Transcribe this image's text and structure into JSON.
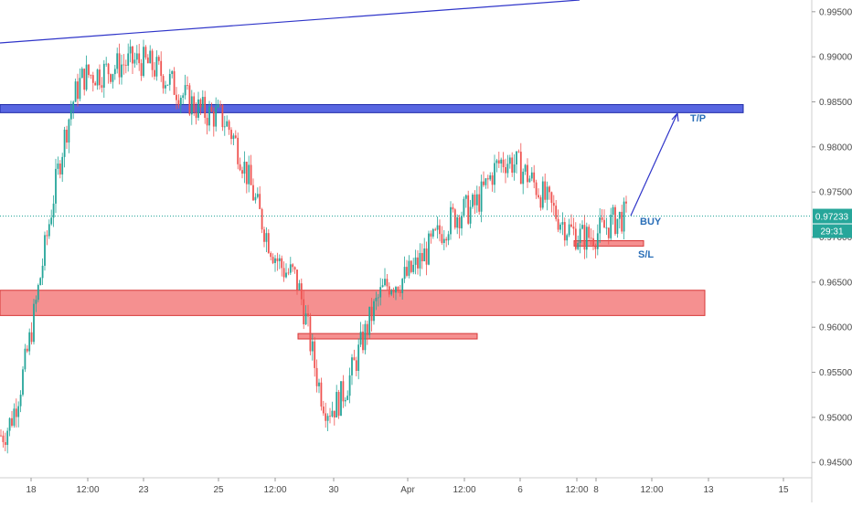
{
  "chart_data": {
    "type": "candlestick",
    "instrument_last_price": "0.97233",
    "countdown": "29:31",
    "y_ticks": [
      "0.99500",
      "0.99000",
      "0.98500",
      "0.98000",
      "0.97500",
      "0.97000",
      "0.96500",
      "0.96000",
      "0.95500",
      "0.95000",
      "0.94500"
    ],
    "y_tick_values": [
      0.995,
      0.99,
      0.985,
      0.98,
      0.975,
      0.97,
      0.965,
      0.96,
      0.955,
      0.95,
      0.945
    ],
    "x_ticks": [
      "18",
      "12:00",
      "23",
      "25",
      "12:00",
      "30",
      "Apr",
      "12:00",
      "6",
      "12:00",
      "8",
      "12:00",
      "13",
      "15"
    ],
    "ylim": [
      0.9433,
      0.9963
    ],
    "annotations": {
      "tp_label": "T/P",
      "buy_label": "BUY",
      "sl_label": "S/L"
    },
    "zones": [
      {
        "name": "resistance-zone",
        "y_low": 0.9838,
        "y_high": 0.9847,
        "color": "#3b4bdc"
      },
      {
        "name": "support-zone",
        "y_low": 0.9613,
        "y_high": 0.9641,
        "color": "#f26b6b"
      },
      {
        "name": "low-zone",
        "y_low": 0.9587,
        "y_high": 0.9593,
        "color": "#f26b6b"
      },
      {
        "name": "stop-loss-zone",
        "y_low": 0.969,
        "y_high": 0.9696,
        "color": "#f26b6b"
      }
    ],
    "key_prices": [
      {
        "x_label": "18",
        "price": 0.948
      },
      {
        "x_label": "12:00",
        "price": 0.988
      },
      {
        "x_label": "23",
        "price": 0.9895
      },
      {
        "x_label": "25",
        "price": 0.9835
      },
      {
        "x_label": "12:00",
        "price": 0.966
      },
      {
        "x_label": "30",
        "price": 0.951
      },
      {
        "x_label": "Apr",
        "price": 0.965
      },
      {
        "x_label": "12:00",
        "price": 0.973
      },
      {
        "x_label": "6",
        "price": 0.9785
      },
      {
        "x_label": "8",
        "price": 0.97
      },
      {
        "x_label": "current",
        "price": 0.9723
      }
    ],
    "colors": {
      "up": "#26a69a",
      "down": "#ef5350",
      "trendline": "#2f35c9",
      "price_line": "#26a69a"
    }
  }
}
